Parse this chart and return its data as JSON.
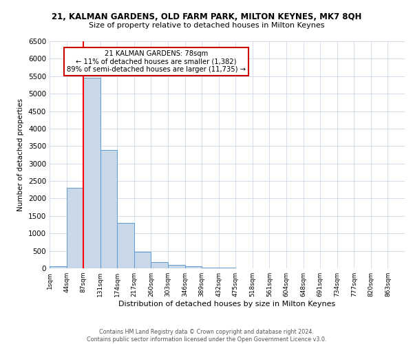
{
  "title": "21, KALMAN GARDENS, OLD FARM PARK, MILTON KEYNES, MK7 8QH",
  "subtitle": "Size of property relative to detached houses in Milton Keynes",
  "xlabel": "Distribution of detached houses by size in Milton Keynes",
  "ylabel": "Number of detached properties",
  "bin_labels": [
    "1sqm",
    "44sqm",
    "87sqm",
    "131sqm",
    "174sqm",
    "217sqm",
    "260sqm",
    "303sqm",
    "346sqm",
    "389sqm",
    "432sqm",
    "475sqm",
    "518sqm",
    "561sqm",
    "604sqm",
    "648sqm",
    "691sqm",
    "734sqm",
    "777sqm",
    "820sqm",
    "863sqm"
  ],
  "bar_values": [
    50,
    2300,
    5450,
    3380,
    1300,
    480,
    185,
    95,
    50,
    20,
    10,
    5,
    3,
    2,
    1,
    1,
    0,
    0,
    0,
    0,
    0
  ],
  "bar_color": "#c8d8e8",
  "bar_edge_color": "#5b9bd5",
  "ylim": [
    0,
    6500
  ],
  "yticks": [
    0,
    500,
    1000,
    1500,
    2000,
    2500,
    3000,
    3500,
    4000,
    4500,
    5000,
    5500,
    6000,
    6500
  ],
  "red_line_x": 2,
  "annotation_title": "21 KALMAN GARDENS: 78sqm",
  "annotation_line1": "← 11% of detached houses are smaller (1,382)",
  "annotation_line2": "89% of semi-detached houses are larger (11,735) →",
  "footer_line1": "Contains HM Land Registry data © Crown copyright and database right 2024.",
  "footer_line2": "Contains public sector information licensed under the Open Government Licence v3.0.",
  "bg_color": "#ffffff",
  "grid_color": "#d0d8e8",
  "annotation_box_color": "#ffffff",
  "annotation_box_edge": "#cc0000"
}
